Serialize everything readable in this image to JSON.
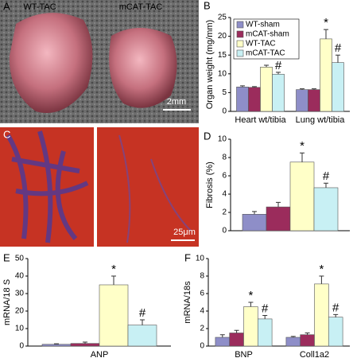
{
  "photos": [
    {
      "panel": "A",
      "labels": [
        "WT-TAC",
        "mCAT-TAC"
      ],
      "scale_bar": "2mm"
    },
    {
      "panel": "C",
      "scale_bar": "25μm"
    }
  ],
  "chart_data": [
    {
      "type": "bar",
      "panel": "B",
      "y_label": "Organ weight (mg/mm)",
      "categories": [
        "Heart wt/tibia",
        "Lung wt/tibia"
      ],
      "series": [
        {
          "name": "WT-sham",
          "color": "#8e8ec8",
          "values": [
            6.5,
            5.8
          ],
          "errors": [
            0.3,
            0.2
          ]
        },
        {
          "name": "mCAT-sham",
          "color": "#9b2c5c",
          "values": [
            6.4,
            5.8
          ],
          "errors": [
            0.2,
            0.2
          ]
        },
        {
          "name": "WT-TAC",
          "color": "#ffffc8",
          "values": [
            11.8,
            19.3
          ],
          "errors": [
            0.5,
            2.5
          ],
          "annotation": "*"
        },
        {
          "name": "mCAT-TAC",
          "color": "#c8f0f4",
          "values": [
            9.9,
            13.0
          ],
          "errors": [
            0.5,
            2.0
          ],
          "annotation": "#"
        }
      ],
      "ylim": [
        0,
        25
      ],
      "yticks": [
        0,
        5,
        10,
        15,
        20,
        25
      ],
      "legend": "upper left"
    },
    {
      "type": "bar",
      "panel": "D",
      "y_label": "Fibrosis (%)",
      "series": [
        {
          "color": "#8e8ec8",
          "values": [
            1.8
          ],
          "errors": [
            0.3
          ]
        },
        {
          "color": "#9b2c5c",
          "values": [
            2.6
          ],
          "errors": [
            0.5
          ]
        },
        {
          "color": "#ffffc8",
          "values": [
            7.5
          ],
          "errors": [
            1.0
          ],
          "annotation": "*"
        },
        {
          "color": "#c8f0f4",
          "values": [
            4.7
          ],
          "errors": [
            0.5
          ],
          "annotation": "#"
        }
      ],
      "ylim": [
        0,
        10
      ],
      "yticks": [
        0,
        2,
        4,
        6,
        8,
        10
      ]
    },
    {
      "type": "bar",
      "panel": "E",
      "y_label": "mRNA/18 S",
      "categories": [
        "ANP"
      ],
      "series": [
        {
          "color": "#8e8ec8",
          "values": [
            1.0
          ],
          "errors": [
            0.3
          ]
        },
        {
          "color": "#9b2c5c",
          "values": [
            1.5
          ],
          "errors": [
            0.8
          ]
        },
        {
          "color": "#ffffc8",
          "values": [
            35
          ],
          "errors": [
            5
          ],
          "annotation": "*"
        },
        {
          "color": "#c8f0f4",
          "values": [
            12
          ],
          "errors": [
            3
          ],
          "annotation": "#"
        }
      ],
      "ylim": [
        0,
        50
      ],
      "yticks": [
        0,
        10,
        20,
        30,
        40,
        50
      ]
    },
    {
      "type": "bar",
      "panel": "F",
      "y_label": "mRNA/18s",
      "categories": [
        "BNP",
        "Coll1a2"
      ],
      "series": [
        {
          "color": "#8e8ec8",
          "values": [
            1.0,
            1.0
          ],
          "errors": [
            0.3,
            0.1
          ]
        },
        {
          "color": "#9b2c5c",
          "values": [
            1.5,
            1.3
          ],
          "errors": [
            0.3,
            0.2
          ]
        },
        {
          "color": "#ffffc8",
          "values": [
            4.5,
            7.1
          ],
          "errors": [
            0.5,
            0.9
          ],
          "annotation": "*"
        },
        {
          "color": "#c8f0f4",
          "values": [
            3.1,
            3.3
          ],
          "errors": [
            0.4,
            0.3
          ],
          "annotation": "#"
        }
      ],
      "ylim": [
        0,
        10
      ],
      "yticks": [
        0,
        2,
        4,
        6,
        8,
        10
      ]
    }
  ]
}
